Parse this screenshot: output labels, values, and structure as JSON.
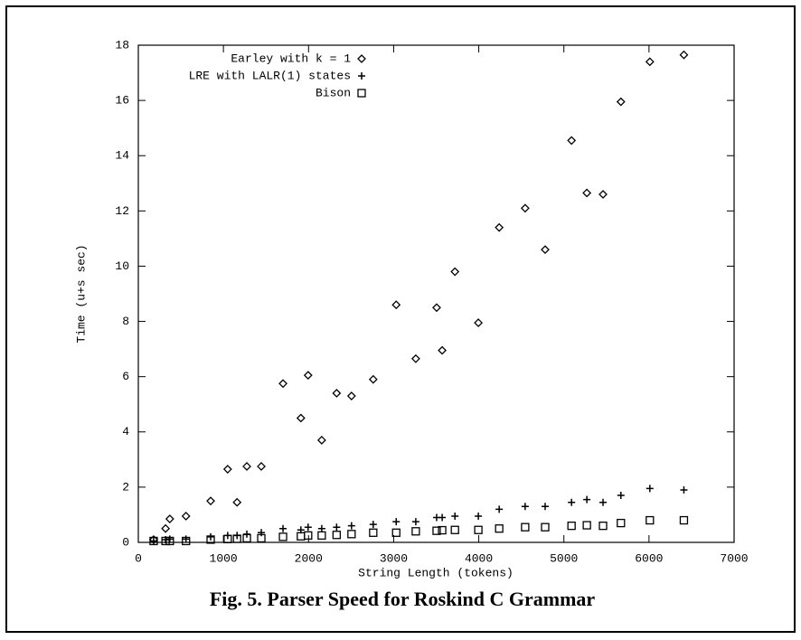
{
  "chart_data": {
    "type": "scatter",
    "caption": "Fig. 5. Parser Speed for Roskind C Grammar",
    "xlabel": "String Length (tokens)",
    "ylabel": "Time (u+s sec)",
    "x": [
      180,
      320,
      370,
      560,
      850,
      1050,
      1160,
      1275,
      1445,
      1700,
      1910,
      1995,
      2155,
      2330,
      2505,
      2760,
      3030,
      3260,
      3505,
      3570,
      3720,
      3995,
      4240,
      4545,
      4780,
      5090,
      5270,
      5460,
      5670,
      6010,
      6410
    ],
    "series": [
      {
        "name": "Earley with k = 1",
        "color": "#000000",
        "marker": "diamond",
        "values": [
          0.1,
          0.5,
          0.85,
          0.95,
          1.5,
          2.65,
          1.45,
          2.75,
          2.75,
          5.75,
          4.5,
          6.05,
          3.7,
          5.4,
          5.3,
          5.9,
          8.6,
          6.65,
          8.5,
          6.95,
          9.8,
          7.95,
          11.4,
          12.1,
          10.6,
          14.55,
          12.65,
          12.6,
          15.95,
          17.4,
          17.65
        ]
      },
      {
        "name": "LRE with LALR(1) states",
        "color": "#000000",
        "marker": "plus",
        "values": [
          0.05,
          0.1,
          0.12,
          0.12,
          0.2,
          0.25,
          0.25,
          0.3,
          0.35,
          0.5,
          0.45,
          0.55,
          0.5,
          0.55,
          0.6,
          0.65,
          0.75,
          0.75,
          0.9,
          0.9,
          0.95,
          0.95,
          1.2,
          1.3,
          1.3,
          1.45,
          1.55,
          1.45,
          1.7,
          1.95,
          1.9
        ]
      },
      {
        "name": "Bison",
        "color": "#000000",
        "marker": "square",
        "values": [
          0.05,
          0.05,
          0.05,
          0.05,
          0.1,
          0.12,
          0.13,
          0.15,
          0.15,
          0.2,
          0.22,
          0.25,
          0.25,
          0.27,
          0.3,
          0.35,
          0.35,
          0.4,
          0.42,
          0.44,
          0.45,
          0.45,
          0.5,
          0.55,
          0.55,
          0.6,
          0.62,
          0.6,
          0.7,
          0.8,
          0.8
        ]
      }
    ],
    "xlim": [
      0,
      7000
    ],
    "xticks": [
      0,
      1000,
      2000,
      3000,
      4000,
      5000,
      6000,
      7000
    ],
    "ylim": [
      0,
      18
    ],
    "yticks": [
      0,
      2,
      4,
      6,
      8,
      10,
      12,
      14,
      16,
      18
    ],
    "legend": "top-left"
  }
}
